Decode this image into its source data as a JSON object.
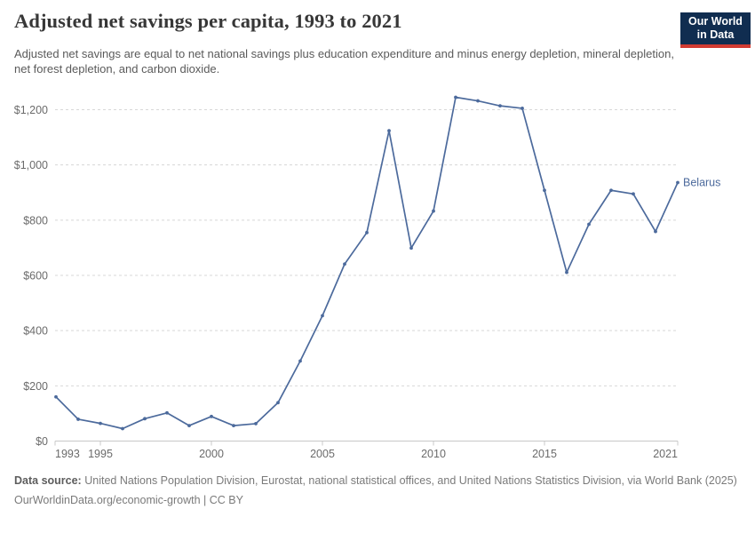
{
  "header": {
    "title": "Adjusted net savings per capita, 1993 to 2021",
    "subtitle": "Adjusted net savings are equal to net national savings plus education expenditure and minus energy depletion, mineral depletion, net forest depletion, and carbon dioxide.",
    "logo": {
      "line1": "Our World",
      "line2": "in Data"
    }
  },
  "chart_data": {
    "type": "line",
    "title": "Adjusted net savings per capita, 1993 to 2021",
    "xlabel": "",
    "ylabel": "",
    "x": [
      1993,
      1994,
      1995,
      1996,
      1997,
      1998,
      1999,
      2000,
      2001,
      2002,
      2003,
      2004,
      2005,
      2006,
      2007,
      2008,
      2009,
      2010,
      2011,
      2012,
      2013,
      2014,
      2015,
      2016,
      2017,
      2018,
      2019,
      2020,
      2021
    ],
    "series": [
      {
        "name": "Belarus",
        "unit": "$",
        "values": [
          160,
          79,
          64,
          45,
          81,
          102,
          56,
          89,
          56,
          63,
          139,
          290,
          454,
          641,
          755,
          1124,
          699,
          833,
          1245,
          1232,
          1214,
          1205,
          908,
          611,
          785,
          908,
          895,
          759,
          936
        ]
      }
    ],
    "xlim": [
      1993,
      2021
    ],
    "ylim": [
      0,
      1300
    ],
    "x_tick_years": [
      1993,
      1995,
      2000,
      2005,
      2010,
      2015,
      2021
    ],
    "x_tick_labels": [
      "1993",
      "1995",
      "2000",
      "2005",
      "2010",
      "2015",
      "2021"
    ],
    "y_ticks": [
      0,
      200,
      400,
      600,
      800,
      1000,
      1200
    ],
    "y_tick_labels": [
      "$0",
      "$200",
      "$400",
      "$600",
      "$800",
      "$1,000",
      "$1,200"
    ],
    "grid": "horizontal-dashed",
    "legend": "end-of-line-label"
  },
  "colors": {
    "line": "#4c6a9c",
    "grid": "#d7d7d7",
    "axis": "#c8c8c8",
    "tick_text": "#6b6b6b",
    "logo_bg": "#102d50",
    "logo_accent": "#d13b32"
  },
  "footer": {
    "source_label": "Data source:",
    "source_text": "United Nations Population Division, Eurostat, national statistical offices, and United Nations Statistics Division, via World Bank (2025)",
    "license_text": "OurWorldinData.org/economic-growth | CC BY"
  }
}
